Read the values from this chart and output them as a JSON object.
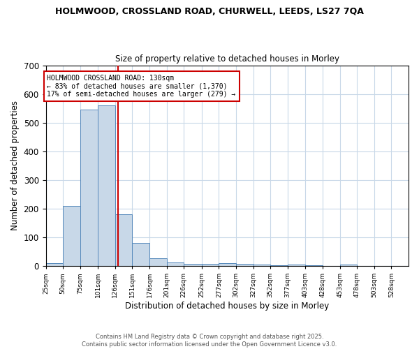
{
  "title_line1": "HOLMWOOD, CROSSLAND ROAD, CHURWELL, LEEDS, LS27 7QA",
  "title_line2": "Size of property relative to detached houses in Morley",
  "xlabel": "Distribution of detached houses by size in Morley",
  "ylabel": "Number of detached properties",
  "bin_edges": [
    25,
    50,
    75,
    101,
    126,
    151,
    176,
    201,
    226,
    252,
    277,
    302,
    327,
    352,
    377,
    403,
    428,
    453,
    478,
    503,
    528
  ],
  "bar_heights": [
    10,
    210,
    545,
    560,
    180,
    80,
    28,
    12,
    8,
    7,
    10,
    8,
    5,
    3,
    4,
    2,
    0,
    5,
    0,
    0,
    0
  ],
  "bar_color": "#c8d8e8",
  "bar_edge_color": "#5588bb",
  "grid_color": "#c8d8e8",
  "vline_x": 130,
  "vline_color": "#cc0000",
  "annotation_text": "HOLMWOOD CROSSLAND ROAD: 130sqm\n← 83% of detached houses are smaller (1,370)\n17% of semi-detached houses are larger (279) →",
  "annotation_box_color": "#cc0000",
  "annotation_text_color": "#000000",
  "ylim": [
    0,
    700
  ],
  "yticks": [
    0,
    100,
    200,
    300,
    400,
    500,
    600,
    700
  ],
  "tick_labels": [
    "25sqm",
    "50sqm",
    "75sqm",
    "101sqm",
    "126sqm",
    "151sqm",
    "176sqm",
    "201sqm",
    "226sqm",
    "252sqm",
    "277sqm",
    "302sqm",
    "327sqm",
    "352sqm",
    "377sqm",
    "403sqm",
    "428sqm",
    "453sqm",
    "478sqm",
    "503sqm",
    "528sqm"
  ],
  "footnote": "Contains HM Land Registry data © Crown copyright and database right 2025.\nContains public sector information licensed under the Open Government Licence v3.0.",
  "background_color": "#ffffff"
}
